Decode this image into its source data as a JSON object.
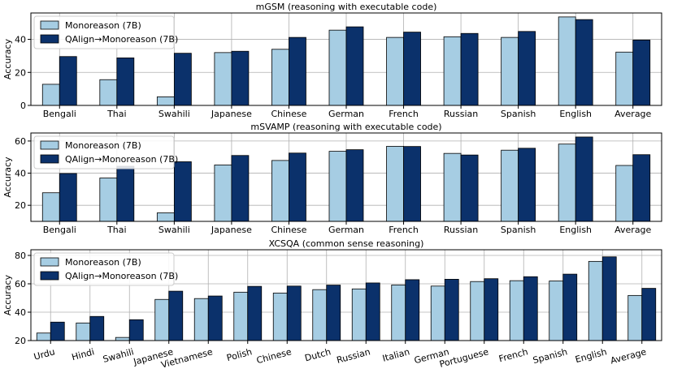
{
  "colors": {
    "series1": "#a6cde3",
    "series2": "#0b316b",
    "grid": "#b0b0b0"
  },
  "chart_data": [
    {
      "type": "bar",
      "title": "mGSM (reasoning with executable code)",
      "xlabel": "",
      "ylabel": "Accuracy",
      "ylim": [
        0,
        56
      ],
      "yticks": [
        0,
        20,
        40
      ],
      "grid": true,
      "legend": "top-left",
      "categories": [
        "Bengali",
        "Thai",
        "Swahili",
        "Japanese",
        "Chinese",
        "German",
        "French",
        "Russian",
        "Spanish",
        "English",
        "Average"
      ],
      "series": [
        {
          "name": "Monoreason (7B)",
          "values": [
            12.8,
            15.6,
            5.2,
            32.0,
            34.0,
            45.6,
            41.2,
            41.6,
            41.2,
            53.6,
            32.3
          ]
        },
        {
          "name": "QAlign→Monoreason (7B)",
          "values": [
            29.6,
            28.8,
            31.6,
            32.8,
            41.2,
            47.6,
            44.4,
            43.6,
            44.8,
            52.0,
            39.6
          ]
        }
      ]
    },
    {
      "type": "bar",
      "title": "mSVAMP (reasoning with executable code)",
      "xlabel": "",
      "ylabel": "Accuracy",
      "ylim": [
        10,
        65
      ],
      "yticks": [
        20,
        40,
        60
      ],
      "grid": true,
      "legend": "top-left",
      "categories": [
        "Bengali",
        "Thai",
        "Swahili",
        "Japanese",
        "Chinese",
        "German",
        "French",
        "Russian",
        "Spanish",
        "English",
        "Average"
      ],
      "series": [
        {
          "name": "Monoreason (7B)",
          "values": [
            27.8,
            37.0,
            15.3,
            45.1,
            47.9,
            53.6,
            56.7,
            52.3,
            54.3,
            58.1,
            44.8
          ]
        },
        {
          "name": "QAlign→Monoreason (7B)",
          "values": [
            39.8,
            44.3,
            47.1,
            51.0,
            52.5,
            54.6,
            56.6,
            51.3,
            55.5,
            62.5,
            51.5
          ]
        }
      ]
    },
    {
      "type": "bar",
      "title": "XCSQA (common sense reasoning)",
      "xlabel": "",
      "ylabel": "Accuracy",
      "ylim": [
        20,
        84
      ],
      "yticks": [
        20,
        40,
        60,
        80
      ],
      "grid": true,
      "legend": "top-left",
      "categories": [
        "Urdu",
        "Hindi",
        "Swahili",
        "Japanese",
        "Vietnamese",
        "Polish",
        "Chinese",
        "Dutch",
        "Russian",
        "Italian",
        "German",
        "Portuguese",
        "French",
        "Spanish",
        "English",
        "Average"
      ],
      "series": [
        {
          "name": "Monoreason (7B)",
          "values": [
            25.3,
            32.4,
            22.2,
            49.0,
            49.6,
            54.1,
            53.5,
            55.9,
            56.4,
            59.2,
            58.4,
            61.6,
            62.2,
            62.0,
            75.8,
            51.8
          ]
        },
        {
          "name": "QAlign→Monoreason (7B)",
          "values": [
            33.0,
            37.0,
            34.7,
            54.8,
            51.4,
            58.2,
            58.4,
            59.1,
            60.6,
            62.9,
            63.2,
            63.6,
            65.0,
            66.8,
            79.0,
            56.8
          ]
        }
      ]
    }
  ]
}
